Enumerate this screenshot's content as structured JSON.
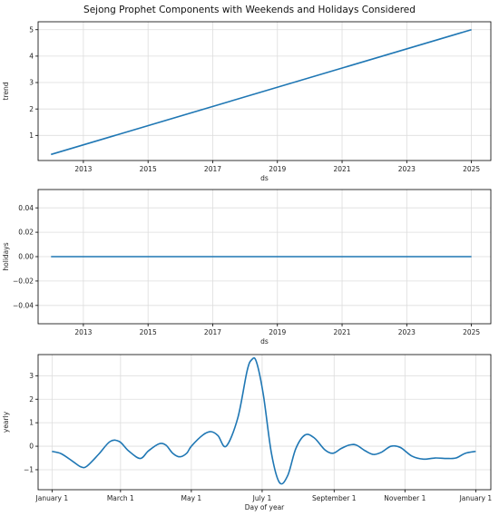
{
  "title": "Sejong Prophet Components with Weekends and Holidays Considered",
  "colors": {
    "line": "#1f77b4",
    "grid": "#dddddd",
    "frame": "#000000"
  },
  "chart_data": [
    {
      "type": "line",
      "name": "trend-panel",
      "xlabel": "ds",
      "ylabel": "trend",
      "xlim": [
        2011.6,
        2025.6
      ],
      "ylim": [
        0.05,
        5.3
      ],
      "xticks": [
        2013,
        2015,
        2017,
        2019,
        2021,
        2023,
        2025
      ],
      "xtick_labels": [
        "2013",
        "2015",
        "2017",
        "2019",
        "2021",
        "2023",
        "2025"
      ],
      "yticks": [
        1,
        2,
        3,
        4,
        5
      ],
      "ytick_labels": [
        "1",
        "2",
        "3",
        "4",
        "5"
      ],
      "grid": true,
      "series": [
        {
          "x": [
            2012.0,
            2025.0
          ],
          "y": [
            0.28,
            5.0
          ]
        }
      ]
    },
    {
      "type": "line",
      "name": "holidays-panel",
      "xlabel": "ds",
      "ylabel": "holidays",
      "xlim": [
        2011.6,
        2025.6
      ],
      "ylim": [
        -0.055,
        0.055
      ],
      "xticks": [
        2013,
        2015,
        2017,
        2019,
        2021,
        2023,
        2025
      ],
      "xtick_labels": [
        "2013",
        "2015",
        "2017",
        "2019",
        "2021",
        "2023",
        "2025"
      ],
      "yticks": [
        -0.04,
        -0.02,
        0.0,
        0.02,
        0.04
      ],
      "ytick_labels": [
        "−0.04",
        "−0.02",
        "0.00",
        "0.02",
        "0.04"
      ],
      "grid": true,
      "series": [
        {
          "x": [
            2012.0,
            2025.0
          ],
          "y": [
            0.0,
            0.0
          ]
        }
      ]
    },
    {
      "type": "line",
      "name": "yearly-panel",
      "xlabel": "Day of year",
      "ylabel": "yearly",
      "xlim": [
        -12,
        378
      ],
      "ylim": [
        -1.85,
        3.9
      ],
      "xticks": [
        0,
        59,
        120,
        181,
        243,
        304,
        365
      ],
      "xtick_labels": [
        "January 1",
        "March 1",
        "May 1",
        "July 1",
        "September 1",
        "November 1",
        "January 1"
      ],
      "yticks": [
        -1,
        0,
        1,
        2,
        3
      ],
      "ytick_labels": [
        "−1",
        "0",
        "1",
        "2",
        "3"
      ],
      "grid": true,
      "series": [
        {
          "x": [
            0,
            8,
            18,
            25,
            30,
            40,
            50,
            58,
            66,
            76,
            83,
            92,
            98,
            104,
            110,
            116,
            120,
            130,
            137,
            143,
            150,
            160,
            168,
            172,
            176,
            182,
            189,
            196,
            203,
            210,
            218,
            226,
            235,
            242,
            249,
            256,
            262,
            270,
            277,
            284,
            292,
            300,
            310,
            320,
            330,
            340,
            348,
            356,
            365
          ],
          "y": [
            -0.22,
            -0.32,
            -0.65,
            -0.88,
            -0.85,
            -0.35,
            0.2,
            0.2,
            -0.2,
            -0.52,
            -0.2,
            0.1,
            0.05,
            -0.3,
            -0.45,
            -0.3,
            0.0,
            0.48,
            0.62,
            0.45,
            0.0,
            1.2,
            3.2,
            3.68,
            3.6,
            2.2,
            -0.3,
            -1.55,
            -1.25,
            -0.1,
            0.48,
            0.35,
            -0.15,
            -0.3,
            -0.1,
            0.05,
            0.05,
            -0.2,
            -0.35,
            -0.25,
            0.0,
            -0.05,
            -0.42,
            -0.55,
            -0.5,
            -0.52,
            -0.5,
            -0.3,
            -0.22
          ]
        }
      ]
    }
  ]
}
